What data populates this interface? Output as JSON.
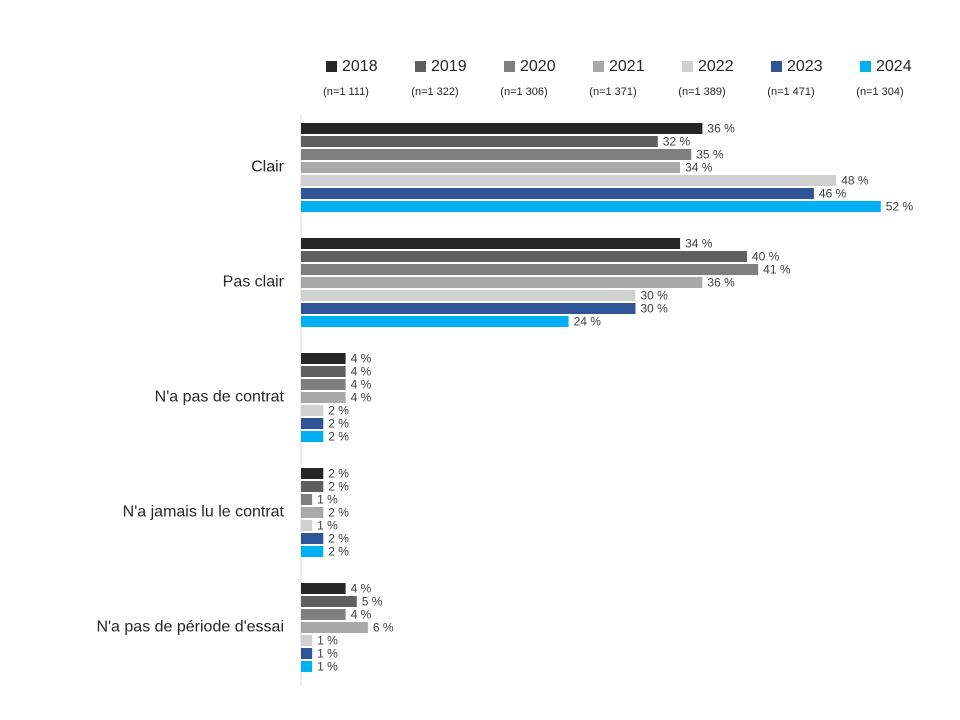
{
  "chart_data": {
    "type": "hbar",
    "categories": [
      "Clair",
      "Pas clair",
      "N'a pas de contrat",
      "N'a jamais lu le contrat",
      "N'a pas de période d'essai"
    ],
    "series": [
      {
        "name": "2018",
        "sample": "(n=1 111)",
        "color": "#262626",
        "values": [
          36,
          34,
          4,
          2,
          4
        ],
        "value_labels": [
          "36 %",
          "34 %",
          "4 %",
          "2 %",
          "4 %"
        ]
      },
      {
        "name": "2019",
        "sample": "(n=1 322)",
        "color": "#5f5f5f",
        "values": [
          32,
          40,
          4,
          2,
          5
        ],
        "value_labels": [
          "32 %",
          "40 %",
          "4 %",
          "2 %",
          "5 %"
        ]
      },
      {
        "name": "2020",
        "sample": "(n=1 306)",
        "color": "#7f7f7f",
        "values": [
          35,
          41,
          4,
          1,
          4
        ],
        "value_labels": [
          "35 %",
          "41 %",
          "4 %",
          "1 %",
          "4 %"
        ]
      },
      {
        "name": "2021",
        "sample": "(n=1 371)",
        "color": "#a9a9a9",
        "values": [
          34,
          36,
          4,
          2,
          6
        ],
        "value_labels": [
          "34 %",
          "36 %",
          "4 %",
          "2 %",
          "6 %"
        ]
      },
      {
        "name": "2022",
        "sample": "(n=1 389)",
        "color": "#d0d0d0",
        "values": [
          48,
          30,
          2,
          1,
          1
        ],
        "value_labels": [
          "48 %",
          "30 %",
          "2 %",
          "1 %",
          "1 %"
        ]
      },
      {
        "name": "2023",
        "sample": "(n=1 471)",
        "color": "#2f5597",
        "values": [
          46,
          30,
          2,
          2,
          1
        ],
        "value_labels": [
          "46 %",
          "30 %",
          "2 %",
          "2 %",
          "1 %"
        ]
      },
      {
        "name": "2024",
        "sample": "(n=1 304)",
        "color": "#00b0f0",
        "values": [
          52,
          24,
          2,
          2,
          1
        ],
        "value_labels": [
          "52 %",
          "24 %",
          "2 %",
          "2 %",
          "1 %"
        ]
      }
    ]
  }
}
